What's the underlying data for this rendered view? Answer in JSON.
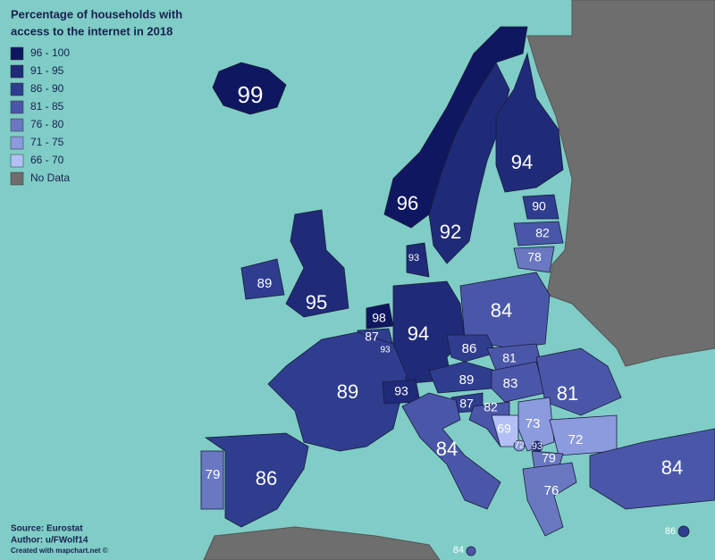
{
  "title_lines": [
    "Percentage of households with",
    "access to the internet in 2018"
  ],
  "legend": [
    {
      "label": "96 - 100",
      "color": "#0f1760"
    },
    {
      "label": "91 - 95",
      "color": "#1f2b78"
    },
    {
      "label": "86 - 90",
      "color": "#2f3d8e"
    },
    {
      "label": "81 - 85",
      "color": "#4a57a9"
    },
    {
      "label": "76 - 80",
      "color": "#6a78c2"
    },
    {
      "label": "71 - 75",
      "color": "#8c9ade"
    },
    {
      "label": "66 - 70",
      "color": "#b3c0f5"
    },
    {
      "label": "No Data",
      "color": "#6e6e6e"
    }
  ],
  "regions": [
    {
      "value": 99,
      "color": "#0f1760"
    },
    {
      "value": 96,
      "color": "#0f1760"
    },
    {
      "value": 92,
      "color": "#1f2b78"
    },
    {
      "value": 94,
      "color": "#1f2b78"
    },
    {
      "value": 90,
      "color": "#2f3d8e"
    },
    {
      "value": 82,
      "color": "#4a57a9"
    },
    {
      "value": 78,
      "color": "#6a78c2"
    },
    {
      "value": 93,
      "color": "#1f2b78"
    },
    {
      "value": 89,
      "color": "#2f3d8e"
    },
    {
      "value": 95,
      "color": "#1f2b78"
    },
    {
      "value": 98,
      "color": "#0f1760"
    },
    {
      "value": 87,
      "color": "#2f3d8e"
    },
    {
      "value": 93,
      "color": "#1f2b78"
    },
    {
      "value": 94,
      "color": "#1f2b78"
    },
    {
      "value": 84,
      "color": "#4a57a9"
    },
    {
      "value": 86,
      "color": "#2f3d8e"
    },
    {
      "value": 81,
      "color": "#4a57a9"
    },
    {
      "value": 89,
      "color": "#2f3d8e"
    },
    {
      "value": 83,
      "color": "#4a57a9"
    },
    {
      "value": 81,
      "color": "#4a57a9"
    },
    {
      "value": 89,
      "color": "#2f3d8e"
    },
    {
      "value": 93,
      "color": "#1f2b78"
    },
    {
      "value": 87,
      "color": "#2f3d8e"
    },
    {
      "value": 82,
      "color": "#4a57a9"
    },
    {
      "value": 69,
      "color": "#b3c0f5"
    },
    {
      "value": 73,
      "color": "#8c9ade"
    },
    {
      "value": 72,
      "color": "#8c9ade"
    },
    {
      "value": 72,
      "color": "#8c9ade"
    },
    {
      "value": 93,
      "color": "#1f2b78"
    },
    {
      "value": 79,
      "color": "#6a78c2"
    },
    {
      "value": 84,
      "color": "#4a57a9"
    },
    {
      "value": 79,
      "color": "#6a78c2"
    },
    {
      "value": 86,
      "color": "#2f3d8e"
    },
    {
      "value": 76,
      "color": "#6a78c2"
    },
    {
      "value": 84,
      "color": "#4a57a9"
    },
    {
      "value": 86,
      "color": "#2f3d8e"
    },
    {
      "value": 84,
      "color": "#4a57a9"
    }
  ],
  "footer": [
    "Source: Eurostat",
    "Author: u/FWolf14",
    "Created with mapchart.net ©"
  ]
}
